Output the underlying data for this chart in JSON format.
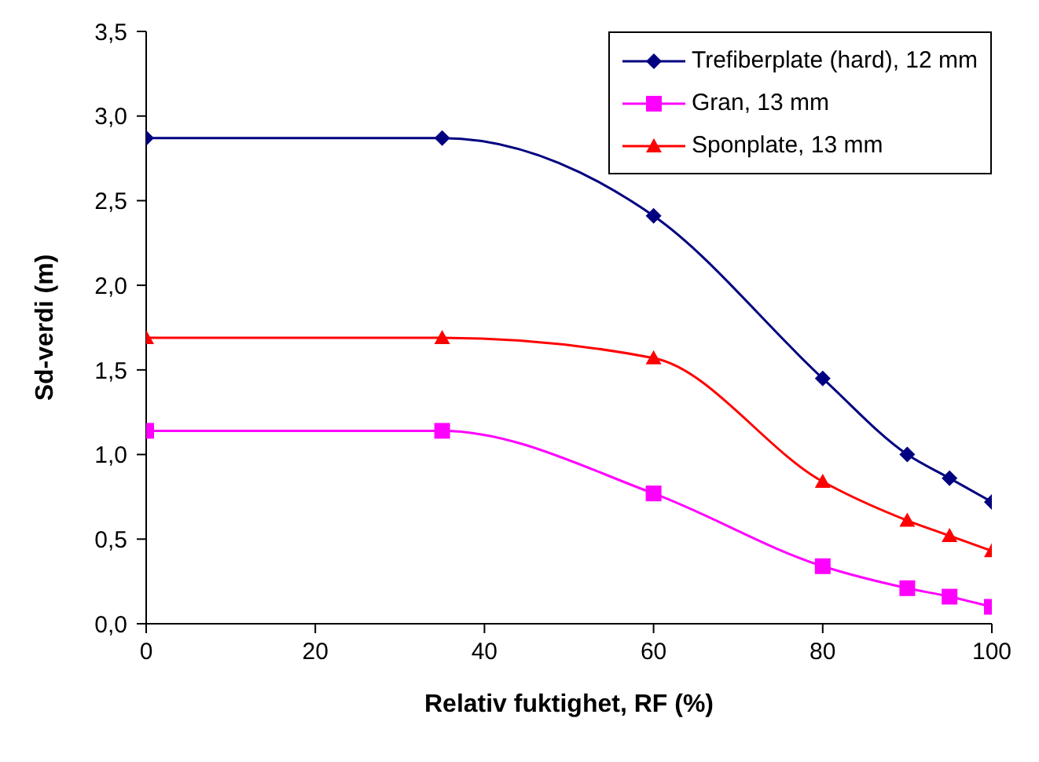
{
  "chart_data": {
    "type": "line",
    "xlabel": "Relativ fuktighet, RF (%)",
    "ylabel": "Sd-verdi (m)",
    "xlim": [
      0,
      100
    ],
    "xticks": [
      0,
      20,
      40,
      60,
      80,
      100
    ],
    "ylim": [
      0,
      3.5
    ],
    "yticks": [
      {
        "value": 0,
        "label": "0,0"
      },
      {
        "value": 0.5,
        "label": "0,5"
      },
      {
        "value": 1,
        "label": "1,0"
      },
      {
        "value": 1.5,
        "label": "1,5"
      },
      {
        "value": 2,
        "label": "2,0"
      },
      {
        "value": 2.5,
        "label": "2,5"
      },
      {
        "value": 3,
        "label": "3,0"
      },
      {
        "value": 3.5,
        "label": "3,5"
      }
    ],
    "x": [
      0,
      35,
      60,
      80,
      90,
      95,
      100
    ],
    "grid": false,
    "legend": "top right",
    "line_style": "solid",
    "series": [
      {
        "name": "Trefiberplate (hard), 12 mm",
        "color": "#000080",
        "marker": "diamond",
        "values": [
          2.87,
          2.87,
          2.41,
          1.45,
          1.0,
          0.86,
          0.72
        ]
      },
      {
        "name": "Gran, 13 mm",
        "color": "#ff00ff",
        "marker": "square",
        "values": [
          1.14,
          1.14,
          0.77,
          0.34,
          0.21,
          0.16,
          0.1
        ]
      },
      {
        "name": "Sponplate, 13 mm",
        "color": "#ff0000",
        "marker": "triangle",
        "values": [
          1.69,
          1.69,
          1.57,
          0.84,
          0.61,
          0.52,
          0.43
        ]
      }
    ]
  }
}
